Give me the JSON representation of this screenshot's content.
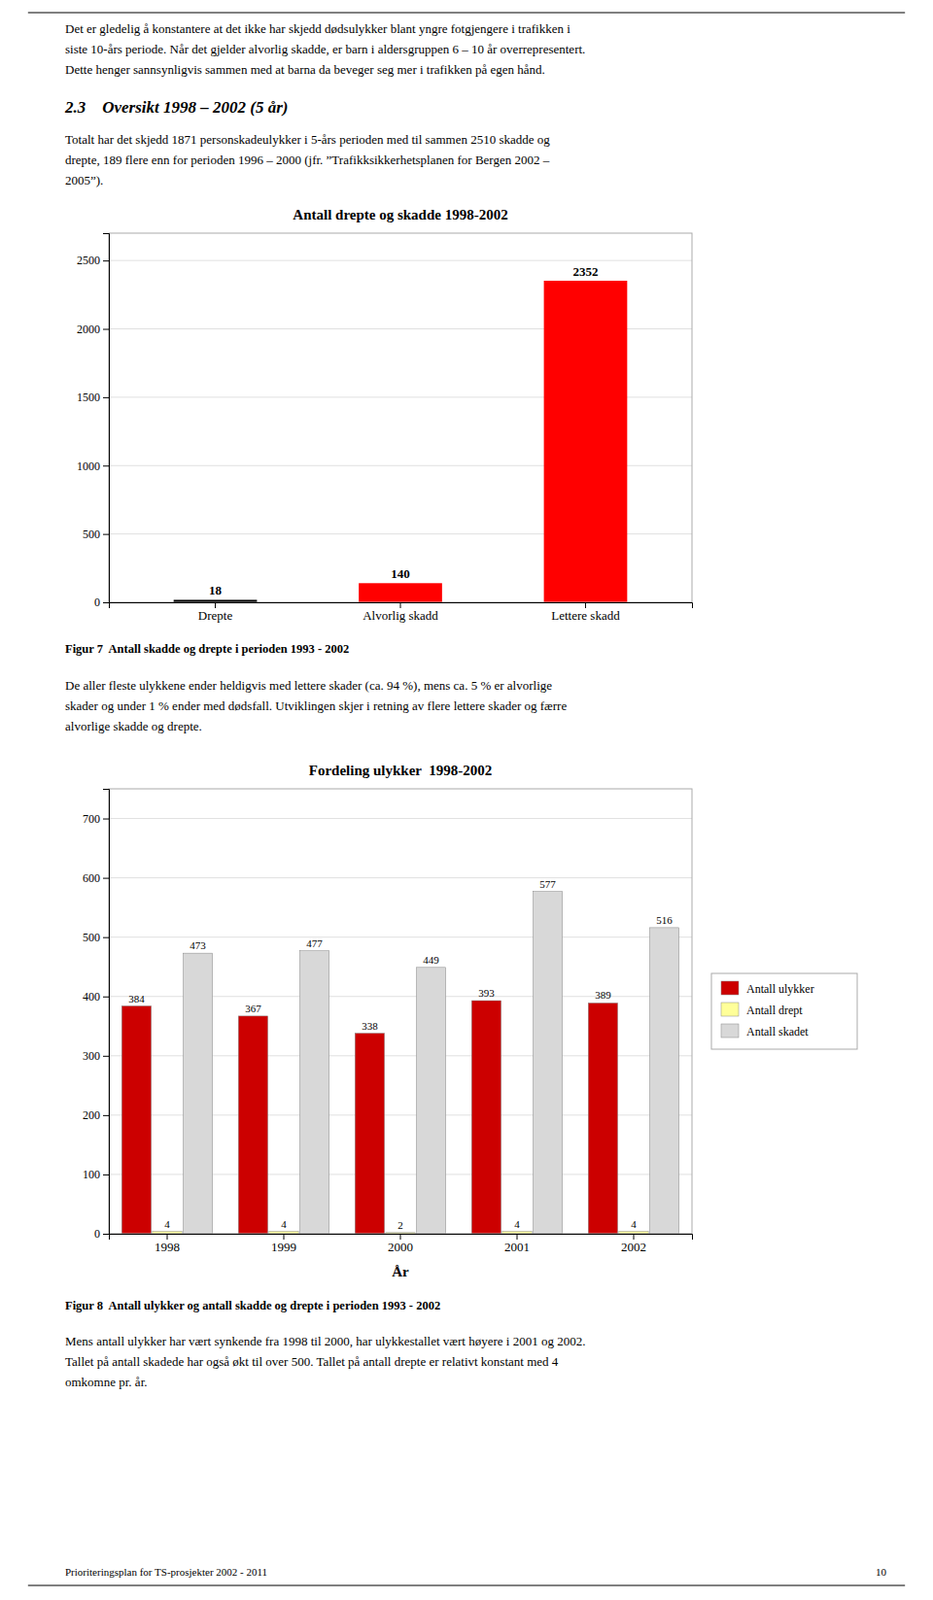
{
  "top_text": [
    "Det er gledelig å konstantere at det ikke har skjedd dødsulykker blant yngre fotgjengere i trafikken i",
    "siste 10-års periode. Når det gjelder alvorlig skadde, er barn i aldersgruppen 6 – 10 år overrepresentert.",
    "Dette henger sannsynligvis sammen med at barna da beveger seg mer i trafikken på egen hånd."
  ],
  "section_title": "2.3    Oversikt 1998 – 2002 (5 år)",
  "section_body": [
    "Totalt har det skjedd 1871 personskadeulykker i 5-års perioden med til sammen 2510 skadde og",
    "drepte, 189 flere enn for perioden 1996 – 2000 (jfr. ”Trafikksikkerhetsplanen for Bergen 2002 –",
    "2005”)."
  ],
  "mid_text": [
    "De aller fleste ulykkene ender heldigvis med lettere skader (ca. 94 %), mens ca. 5 % er alvorlige",
    "skader og under 1 % ender med dødsfall. Utviklingen skjer i retning av flere lettere skader og færre",
    "alvorlige skadde og drepte."
  ],
  "bottom_text": [
    "Mens antall ulykker har vært synkende fra 1998 til 2000, har ulykkestallet vært høyere i 2001 og 2002.",
    "Tallet på antall skadede har også økt til over 500. Tallet på antall drepte er relativt konstant med 4",
    "omkomne pr. år."
  ],
  "footer_left": "Prioriteringsplan for TS-prosjekter 2002 - 2011",
  "footer_right": "10",
  "chart_data": [
    {
      "type": "bar",
      "title": "Antall drepte og skadde 1998-2002",
      "caption": "Figur 7  Antall skadde og drepte i perioden 1993 - 2002",
      "categories": [
        "Drepte",
        "Alvorlig skadd",
        "Lettere skadd"
      ],
      "values": [
        18,
        140,
        2352
      ],
      "colors": [
        "#000000",
        "#ff0000",
        "#ff0000"
      ],
      "ylim": [
        0,
        2700
      ],
      "yticks": [
        0,
        500,
        1000,
        1500,
        2000,
        2500
      ],
      "grid": true,
      "data_labels": true
    },
    {
      "type": "bar",
      "title": "Fordeling ulykker  1998-2002",
      "caption": "Figur 8  Antall ulykker og antall skadde og drepte i perioden 1993 - 2002",
      "x_label": "År",
      "categories": [
        "1998",
        "1999",
        "2000",
        "2001",
        "2002"
      ],
      "series": [
        {
          "name": "Antall ulykker",
          "color": "#cc0000",
          "values": [
            384,
            367,
            338,
            393,
            389
          ]
        },
        {
          "name": "Antall drept",
          "color": "#ffff99",
          "values": [
            4,
            4,
            2,
            4,
            4
          ]
        },
        {
          "name": "Antall skadet",
          "color": "#d8d8d8",
          "values": [
            473,
            477,
            449,
            577,
            516
          ]
        }
      ],
      "ylim": [
        0,
        750
      ],
      "yticks": [
        0,
        100,
        200,
        300,
        400,
        500,
        600,
        700
      ],
      "grid": true,
      "legend": "right",
      "data_labels": true
    }
  ]
}
